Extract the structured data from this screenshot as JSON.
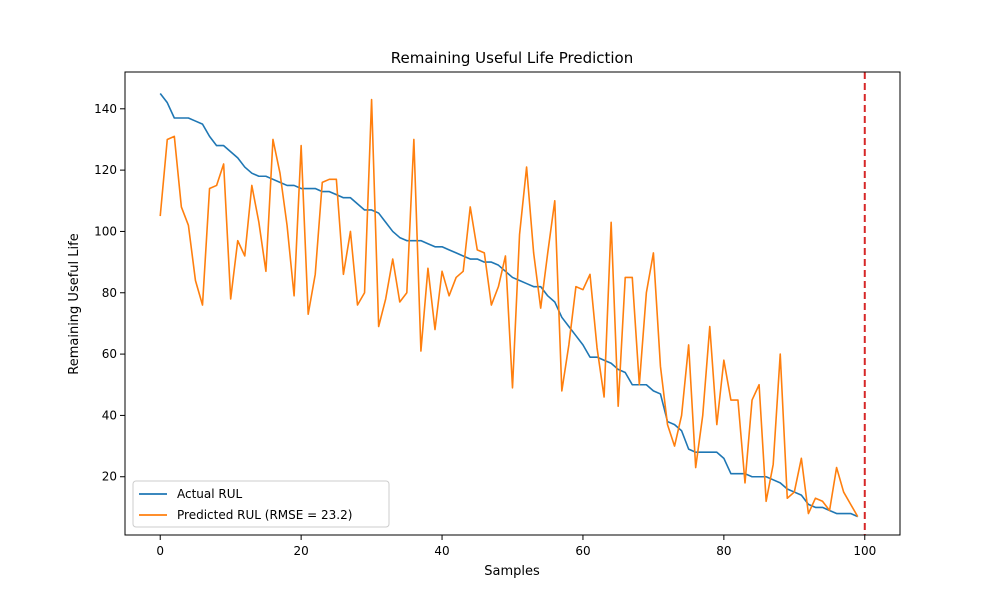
{
  "chart_data": {
    "type": "line",
    "title": "Remaining Useful Life Prediction",
    "xlabel": "Samples",
    "ylabel": "Remaining Useful Life",
    "xlim": [
      -5,
      105
    ],
    "ylim": [
      1,
      152
    ],
    "xticks": [
      0,
      20,
      40,
      60,
      80,
      100
    ],
    "yticks": [
      20,
      40,
      60,
      80,
      100,
      120,
      140
    ],
    "grid": false,
    "legend_position": "lower-left",
    "vline": {
      "x": 100,
      "color": "#d62728",
      "style": "dashed"
    },
    "series": [
      {
        "name": "Actual RUL",
        "color": "#1f77b4",
        "x": [
          0,
          1,
          2,
          3,
          4,
          5,
          6,
          7,
          8,
          9,
          10,
          11,
          12,
          13,
          14,
          15,
          16,
          17,
          18,
          19,
          20,
          21,
          22,
          23,
          24,
          25,
          26,
          27,
          28,
          29,
          30,
          31,
          32,
          33,
          34,
          35,
          36,
          37,
          38,
          39,
          40,
          41,
          42,
          43,
          44,
          45,
          46,
          47,
          48,
          49,
          50,
          51,
          52,
          53,
          54,
          55,
          56,
          57,
          58,
          59,
          60,
          61,
          62,
          63,
          64,
          65,
          66,
          67,
          68,
          69,
          70,
          71,
          72,
          73,
          74,
          75,
          76,
          77,
          78,
          79,
          80,
          81,
          82,
          83,
          84,
          85,
          86,
          87,
          88,
          89,
          90,
          91,
          92,
          93,
          94,
          95,
          96,
          97,
          98,
          99
        ],
        "values": [
          145,
          142,
          137,
          137,
          137,
          136,
          135,
          131,
          128,
          128,
          126,
          124,
          121,
          119,
          118,
          118,
          117,
          116,
          115,
          115,
          114,
          114,
          114,
          113,
          113,
          112,
          111,
          111,
          109,
          107,
          107,
          106,
          103,
          100,
          98,
          97,
          97,
          97,
          96,
          95,
          95,
          94,
          93,
          92,
          91,
          91,
          90,
          90,
          89,
          87,
          85,
          84,
          83,
          82,
          82,
          79,
          77,
          72,
          69,
          66,
          63,
          59,
          59,
          58,
          57,
          55,
          54,
          50,
          50,
          50,
          48,
          47,
          38,
          37,
          35,
          29,
          28,
          28,
          28,
          28,
          26,
          21,
          21,
          21,
          20,
          20,
          20,
          19,
          18,
          16,
          15,
          14,
          11,
          10,
          10,
          9,
          8,
          8,
          8,
          7
        ]
      },
      {
        "name": "Predicted RUL (RMSE = 23.2)",
        "color": "#ff7f0e",
        "x": [
          0,
          1,
          2,
          3,
          4,
          5,
          6,
          7,
          8,
          9,
          10,
          11,
          12,
          13,
          14,
          15,
          16,
          17,
          18,
          19,
          20,
          21,
          22,
          23,
          24,
          25,
          26,
          27,
          28,
          29,
          30,
          31,
          32,
          33,
          34,
          35,
          36,
          37,
          38,
          39,
          40,
          41,
          42,
          43,
          44,
          45,
          46,
          47,
          48,
          49,
          50,
          51,
          52,
          53,
          54,
          55,
          56,
          57,
          58,
          59,
          60,
          61,
          62,
          63,
          64,
          65,
          66,
          67,
          68,
          69,
          70,
          71,
          72,
          73,
          74,
          75,
          76,
          77,
          78,
          79,
          80,
          81,
          82,
          83,
          84,
          85,
          86,
          87,
          88,
          89,
          90,
          91,
          92,
          93,
          94,
          95,
          96,
          97,
          98,
          99
        ],
        "values": [
          105,
          130,
          131,
          108,
          102,
          84,
          76,
          114,
          115,
          122,
          78,
          97,
          92,
          115,
          103,
          87,
          130,
          119,
          102,
          79,
          128,
          73,
          86,
          116,
          117,
          117,
          86,
          100,
          76,
          80,
          143,
          69,
          78,
          91,
          77,
          80,
          130,
          61,
          88,
          68,
          87,
          79,
          85,
          87,
          108,
          94,
          93,
          76,
          82,
          92,
          49,
          99,
          121,
          93,
          75,
          93,
          110,
          48,
          63,
          82,
          81,
          86,
          62,
          46,
          103,
          43,
          85,
          85,
          50,
          80,
          93,
          56,
          37,
          30,
          40,
          63,
          23,
          40,
          69,
          37,
          58,
          45,
          45,
          18,
          45,
          50,
          12,
          24,
          60,
          13,
          15,
          26,
          8,
          13,
          12,
          9,
          23,
          15,
          11,
          7
        ]
      }
    ]
  }
}
